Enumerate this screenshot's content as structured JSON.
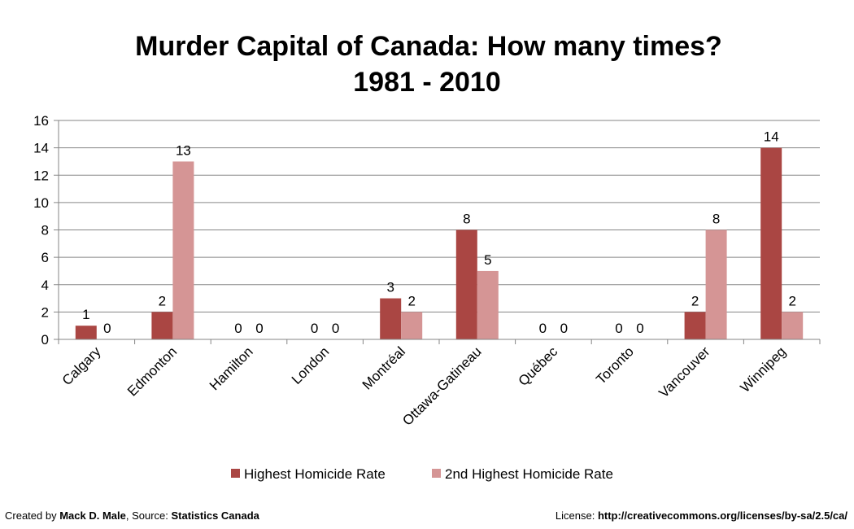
{
  "chart_data": {
    "type": "bar",
    "title": "Murder Capital of Canada: How many times?",
    "subtitle": "1981 - 2010",
    "xlabel": "",
    "ylabel": "",
    "ylim": [
      0,
      16
    ],
    "yticks": [
      0,
      2,
      4,
      6,
      8,
      10,
      12,
      14,
      16
    ],
    "grid": true,
    "legend_position": "bottom",
    "categories": [
      "Calgary",
      "Edmonton",
      "Hamilton",
      "London",
      "Montréal",
      "Ottawa-Gatineau",
      "Québec",
      "Toronto",
      "Vancouver",
      "Winnipeg"
    ],
    "series": [
      {
        "name": "Highest Homicide Rate",
        "color": "#AA4643",
        "values": [
          1,
          2,
          0,
          0,
          3,
          8,
          0,
          0,
          2,
          14
        ]
      },
      {
        "name": "2nd Highest Homicide Rate",
        "color": "#D59595",
        "values": [
          0,
          13,
          0,
          0,
          2,
          5,
          0,
          0,
          8,
          2
        ]
      }
    ]
  },
  "footer": {
    "created_by_prefix": "Created by ",
    "author": "Mack D. Male",
    "source_prefix": ", Source: ",
    "source": "Statistics Canada",
    "license_prefix": "License: ",
    "license_url": "http://creativecommons.org/licenses/by-sa/2.5/ca/"
  }
}
